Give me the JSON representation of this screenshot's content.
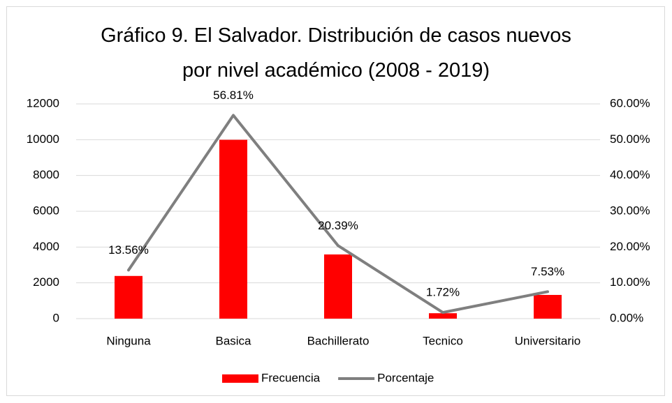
{
  "chart_data": {
    "type": "bar_line",
    "title": "Gráfico 9. El Salvador. Distribución de casos nuevos por nivel académico (2008 - 2019)",
    "categories": [
      "Ninguna",
      "Basica",
      "Bachillerato",
      "Tecnico",
      "Universitario"
    ],
    "series": [
      {
        "name": "Frecuencia",
        "type": "bar",
        "color": "#ff0000",
        "values": [
          2385,
          9993,
          3587,
          303,
          1325
        ]
      },
      {
        "name": "Porcentaje",
        "type": "line",
        "axis": "y2",
        "color": "#7f7f7f",
        "values": [
          13.56,
          56.81,
          20.39,
          1.72,
          7.53
        ],
        "value_labels": [
          "13.56%",
          "56.81%",
          "20.39%",
          "1.72%",
          "7.53%"
        ]
      }
    ],
    "ylim": [
      0,
      12000
    ],
    "yticks": [
      0,
      2000,
      4000,
      6000,
      8000,
      10000,
      12000
    ],
    "y2lim": [
      0,
      60
    ],
    "y2ticks": [
      {
        "value": 0,
        "label": "0.00%"
      },
      {
        "value": 10,
        "label": "10.00%"
      },
      {
        "value": 20,
        "label": "20.00%"
      },
      {
        "value": 30,
        "label": "30.00%"
      },
      {
        "value": 40,
        "label": "40.00%"
      },
      {
        "value": 50,
        "label": "50.00%"
      },
      {
        "value": 60,
        "label": "60.00%"
      }
    ],
    "grid": true,
    "legend": "bottom"
  }
}
